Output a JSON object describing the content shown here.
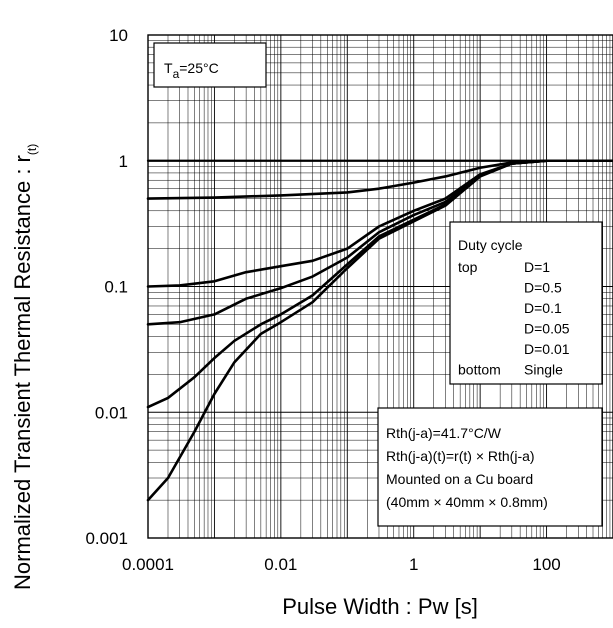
{
  "chart_data": {
    "type": "line",
    "x_scale": "log",
    "y_scale": "log",
    "xlim": [
      0.0001,
      1000
    ],
    "ylim": [
      0.001,
      10
    ],
    "grid": true,
    "xlabel": "Pulse Width : Pw [s]",
    "ylabel": "Normalized Transient Thermal Resistance : r",
    "ylabel_sub": "(t)",
    "x_tick_labels": [
      "0.0001",
      "0.01",
      "1",
      "100"
    ],
    "x_tick_values": [
      0.0001,
      0.01,
      1,
      100
    ],
    "y_tick_labels": [
      "10",
      "1",
      "0.1",
      "0.01",
      "0.001"
    ],
    "y_tick_values": [
      10,
      1,
      0.1,
      0.01,
      0.001
    ],
    "condition": {
      "T": "T",
      "sub": "a",
      "value": "=25°C"
    },
    "legend": {
      "title": "Duty cycle",
      "rows": [
        {
          "pos": "top",
          "label": "D=1"
        },
        {
          "pos": "",
          "label": "D=0.5"
        },
        {
          "pos": "",
          "label": "D=0.1"
        },
        {
          "pos": "",
          "label": "D=0.05"
        },
        {
          "pos": "",
          "label": "D=0.01"
        },
        {
          "pos": "bottom",
          "label": "Single"
        }
      ]
    },
    "notes": [
      "Rth(j-a)=41.7°C/W",
      "Rth(j-a)(t)=r(t) × Rth(j-a)",
      "Mounted on a Cu board",
      "(40mm × 40mm × 0.8mm)"
    ],
    "series": [
      {
        "name": "D=1",
        "x": [
          0.0001,
          1000
        ],
        "y": [
          1,
          1
        ]
      },
      {
        "name": "D=0.5",
        "x": [
          0.0001,
          0.001,
          0.01,
          0.1,
          0.3,
          1,
          3,
          10,
          30,
          100,
          1000
        ],
        "y": [
          0.5,
          0.51,
          0.53,
          0.56,
          0.6,
          0.67,
          0.75,
          0.88,
          0.97,
          1,
          1
        ]
      },
      {
        "name": "D=0.1",
        "x": [
          0.0001,
          0.0003,
          0.001,
          0.003,
          0.01,
          0.03,
          0.1,
          0.3,
          1,
          3,
          10,
          30,
          100,
          1000
        ],
        "y": [
          0.1,
          0.102,
          0.11,
          0.13,
          0.145,
          0.16,
          0.2,
          0.3,
          0.4,
          0.5,
          0.78,
          0.95,
          1,
          1
        ]
      },
      {
        "name": "D=0.05",
        "x": [
          0.0001,
          0.0003,
          0.001,
          0.003,
          0.01,
          0.03,
          0.1,
          0.3,
          1,
          3,
          10,
          30,
          100,
          1000
        ],
        "y": [
          0.05,
          0.052,
          0.06,
          0.08,
          0.097,
          0.12,
          0.17,
          0.27,
          0.37,
          0.47,
          0.77,
          0.95,
          1,
          1
        ]
      },
      {
        "name": "D=0.01",
        "x": [
          0.0001,
          0.0002,
          0.0005,
          0.001,
          0.002,
          0.005,
          0.01,
          0.03,
          0.1,
          0.3,
          1,
          3,
          10,
          30,
          100,
          1000
        ],
        "y": [
          0.011,
          0.013,
          0.019,
          0.027,
          0.037,
          0.05,
          0.06,
          0.085,
          0.15,
          0.25,
          0.34,
          0.45,
          0.76,
          0.95,
          1,
          1
        ]
      },
      {
        "name": "Single",
        "x": [
          0.0001,
          0.0002,
          0.0005,
          0.001,
          0.002,
          0.005,
          0.01,
          0.03,
          0.1,
          0.3,
          1,
          3,
          10,
          30,
          100,
          1000
        ],
        "y": [
          0.002,
          0.003,
          0.007,
          0.014,
          0.025,
          0.042,
          0.052,
          0.075,
          0.14,
          0.24,
          0.33,
          0.44,
          0.75,
          0.95,
          1,
          1
        ]
      }
    ]
  }
}
